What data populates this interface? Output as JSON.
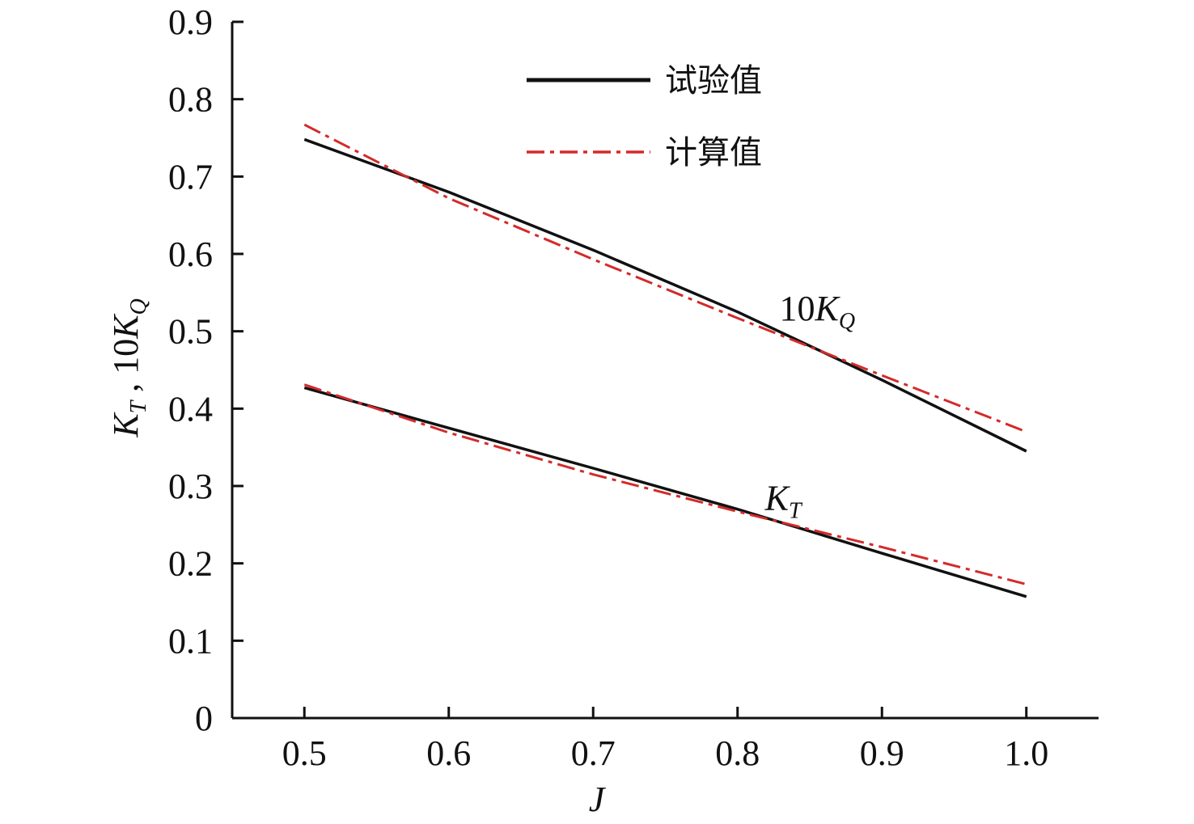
{
  "chart_data": {
    "type": "line",
    "xlabel": "J",
    "ylabel": {
      "k": "K",
      "k_sub": "T",
      "sep": " , ",
      "mult": "10K",
      "mult_sub": "Q"
    },
    "xlim": [
      0.45,
      1.05
    ],
    "ylim": [
      0,
      0.9
    ],
    "x_ticks": [
      0.5,
      0.6,
      0.7,
      0.8,
      0.9,
      1.0
    ],
    "x_tick_labels": [
      "0.5",
      "0.6",
      "0.7",
      "0.8",
      "0.9",
      "1.0"
    ],
    "y_ticks": [
      0,
      0.1,
      0.2,
      0.3,
      0.4,
      0.5,
      0.6,
      0.7,
      0.8,
      0.9
    ],
    "y_tick_labels": [
      "0",
      "0.1",
      "0.2",
      "0.3",
      "0.4",
      "0.5",
      "0.6",
      "0.7",
      "0.8",
      "0.9"
    ],
    "grid": false,
    "legend": {
      "placement": "top-center",
      "entries": [
        {
          "label": "试验值",
          "style": "solid",
          "color": "#111111"
        },
        {
          "label": "计算值",
          "style": "dashdot",
          "color": "#d42a2a"
        }
      ]
    },
    "annotations": [
      {
        "text": "10K",
        "sub": "Q",
        "x": 0.885,
        "y": 0.53
      },
      {
        "text": "K",
        "sub": "T",
        "x": 0.875,
        "y": 0.285
      }
    ],
    "series": [
      {
        "group": "10KQ",
        "legend_index": 0,
        "style": "solid",
        "color": "#111111",
        "x": [
          0.5,
          0.6,
          0.7,
          0.8,
          0.9,
          1.0
        ],
        "y": [
          0.748,
          0.68,
          0.605,
          0.525,
          0.437,
          0.345
        ]
      },
      {
        "group": "10KQ",
        "legend_index": 1,
        "style": "dashdot",
        "color": "#d42a2a",
        "x": [
          0.5,
          0.6,
          0.7,
          0.8,
          0.9,
          1.0
        ],
        "y": [
          0.767,
          0.672,
          0.593,
          0.517,
          0.443,
          0.37
        ]
      },
      {
        "group": "KT",
        "legend_index": 0,
        "style": "solid",
        "color": "#111111",
        "x": [
          0.5,
          0.6,
          0.7,
          0.8,
          0.9,
          1.0
        ],
        "y": [
          0.427,
          0.375,
          0.323,
          0.27,
          0.213,
          0.157
        ]
      },
      {
        "group": "KT",
        "legend_index": 1,
        "style": "dashdot",
        "color": "#d42a2a",
        "x": [
          0.5,
          0.6,
          0.7,
          0.8,
          0.9,
          1.0
        ],
        "y": [
          0.431,
          0.369,
          0.315,
          0.267,
          0.221,
          0.173
        ]
      }
    ]
  }
}
